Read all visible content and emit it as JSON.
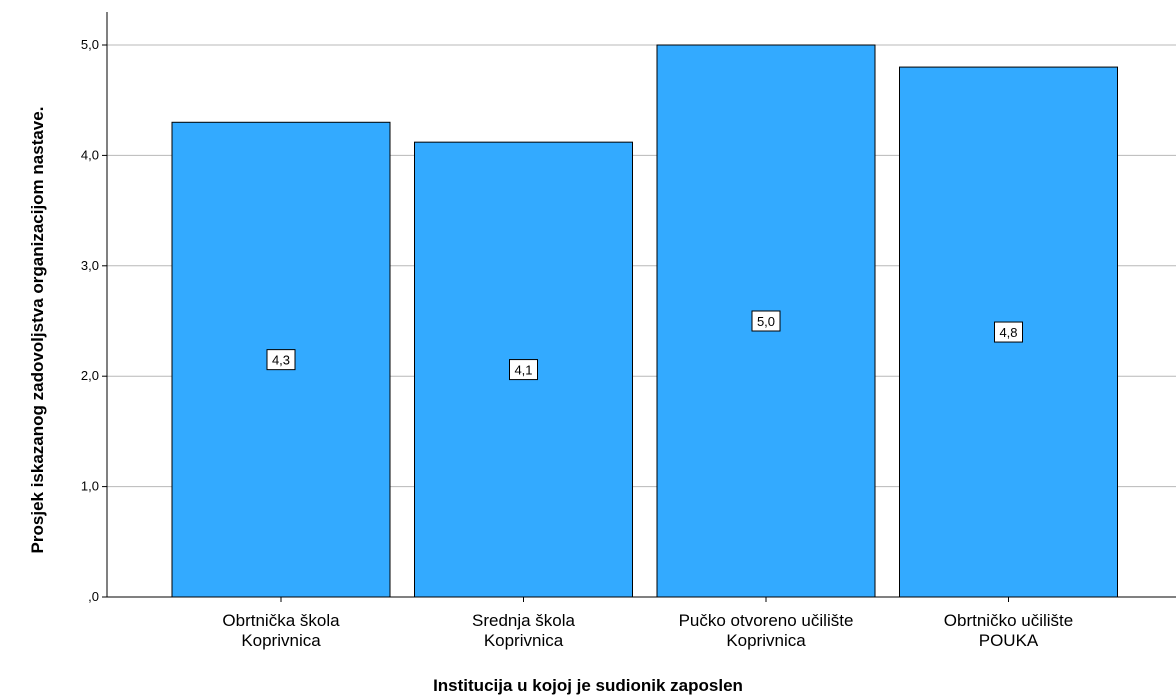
{
  "chart_data": {
    "type": "bar",
    "categories": [
      [
        "Obrtnička škola",
        "Koprivnica"
      ],
      [
        "Srednja škola",
        "Koprivnica"
      ],
      [
        "Pučko otvoreno učilište",
        "Koprivnica"
      ],
      [
        "Obrtničko učilište",
        "POUKA"
      ]
    ],
    "values": [
      4.3,
      4.12,
      5.0,
      4.8
    ],
    "data_labels": [
      "4,3",
      "4,1",
      "5,0",
      "4,8"
    ],
    "xlabel": "Institucija u kojoj je sudionik zaposlen",
    "ylabel": "Prosjek iskazanog zadovoljstva organizacijom nastave.",
    "ylim": [
      0,
      5
    ],
    "yticks": [
      0,
      1,
      2,
      3,
      4,
      5
    ],
    "ytick_labels": [
      ",0",
      "1,0",
      "2,0",
      "3,0",
      "4,0",
      "5,0"
    ],
    "grid": "horizontal",
    "colors": {
      "bar": "#33aaff",
      "bar_stroke": "#000000",
      "grid": "#b8b8b8"
    }
  }
}
